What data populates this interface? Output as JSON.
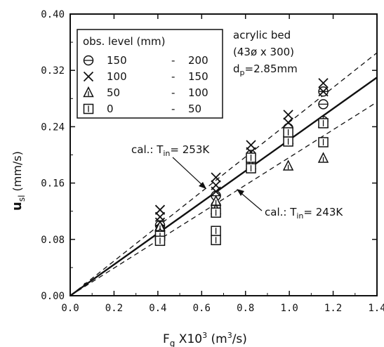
{
  "chart_data": {
    "type": "scatter",
    "xlabel": {
      "main": "F",
      "sub": "g",
      "rest": " X10",
      "sup": "3",
      "unit": " (m",
      "unit_sup": "3",
      "unit_end": "/s)"
    },
    "ylabel": {
      "main": "u",
      "sub": "sl",
      "unit": " (mm/s)"
    },
    "xlim": [
      0.0,
      1.4
    ],
    "ylim": [
      0.0,
      0.4
    ],
    "x_ticks": [
      0.0,
      0.2,
      0.4,
      0.6,
      0.8,
      1.0,
      1.2,
      1.4
    ],
    "x_tick_labels": [
      "0.0",
      "0.2",
      "0.4",
      "0.6",
      "0.8",
      "1.0",
      "1.2",
      "1.4"
    ],
    "y_ticks": [
      0.0,
      0.08,
      0.16,
      0.24,
      0.32,
      0.4
    ],
    "y_tick_labels": [
      "0.00",
      "0.08",
      "0.16",
      "0.24",
      "0.32",
      "0.40"
    ],
    "legend": {
      "header": "obs.  level (mm)",
      "entries": [
        {
          "symbol": "circle-bar",
          "from": "150",
          "to": "200"
        },
        {
          "symbol": "x",
          "from": "100",
          "to": "150"
        },
        {
          "symbol": "triangle-bar",
          "from": "50",
          "to": "100"
        },
        {
          "symbol": "square-bar",
          "from": "0",
          "to": "50"
        }
      ]
    },
    "bed_info": {
      "line1": "acrylic bed",
      "line2": "(43ø x 300)",
      "line3_main": "d",
      "line3_sub": "p",
      "line3_rest": "=2.85mm"
    },
    "lines": [
      {
        "style": "solid",
        "x": [
          0.0,
          1.4
        ],
        "y": [
          0.0,
          0.31
        ]
      },
      {
        "style": "dashed",
        "x": [
          0.0,
          1.4
        ],
        "y": [
          0.0,
          0.345
        ]
      },
      {
        "style": "dashed",
        "x": [
          0.0,
          1.4
        ],
        "y": [
          0.0,
          0.275
        ]
      }
    ],
    "annotations": [
      {
        "pre": "cal.: T",
        "sub": "in",
        "post": "= 253K"
      },
      {
        "pre": "cal.: T",
        "sub": "in",
        "post": "= 243K"
      }
    ],
    "series": [
      {
        "symbol": "circle-bar",
        "points": [
          [
            0.41,
            0.1
          ],
          [
            0.41,
            0.092
          ],
          [
            0.665,
            0.142
          ],
          [
            0.665,
            0.128
          ],
          [
            0.825,
            0.2
          ],
          [
            0.825,
            0.19
          ],
          [
            0.995,
            0.238
          ],
          [
            0.995,
            0.226
          ],
          [
            1.155,
            0.29
          ],
          [
            1.155,
            0.272
          ],
          [
            1.155,
            0.248
          ]
        ]
      },
      {
        "symbol": "x",
        "points": [
          [
            0.41,
            0.122
          ],
          [
            0.41,
            0.112
          ],
          [
            0.41,
            0.104
          ],
          [
            0.665,
            0.168
          ],
          [
            0.665,
            0.157
          ],
          [
            0.665,
            0.148
          ],
          [
            0.825,
            0.214
          ],
          [
            0.825,
            0.204
          ],
          [
            0.995,
            0.257
          ],
          [
            0.995,
            0.246
          ],
          [
            1.155,
            0.302
          ],
          [
            1.155,
            0.29
          ]
        ]
      },
      {
        "symbol": "triangle-bar",
        "points": [
          [
            0.41,
            0.098
          ],
          [
            0.41,
            0.088
          ],
          [
            0.665,
            0.134
          ],
          [
            0.665,
            0.122
          ],
          [
            0.825,
            0.186
          ],
          [
            0.995,
            0.184
          ],
          [
            0.995,
            0.222
          ],
          [
            1.155,
            0.245
          ],
          [
            1.155,
            0.195
          ]
        ]
      },
      {
        "symbol": "square-bar",
        "points": [
          [
            0.41,
            0.085
          ],
          [
            0.41,
            0.078
          ],
          [
            0.665,
            0.118
          ],
          [
            0.665,
            0.092
          ],
          [
            0.665,
            0.079
          ],
          [
            0.825,
            0.181
          ],
          [
            0.825,
            0.196
          ],
          [
            0.995,
            0.219
          ],
          [
            0.995,
            0.232
          ],
          [
            1.155,
            0.218
          ],
          [
            1.155,
            0.245
          ]
        ]
      }
    ]
  }
}
